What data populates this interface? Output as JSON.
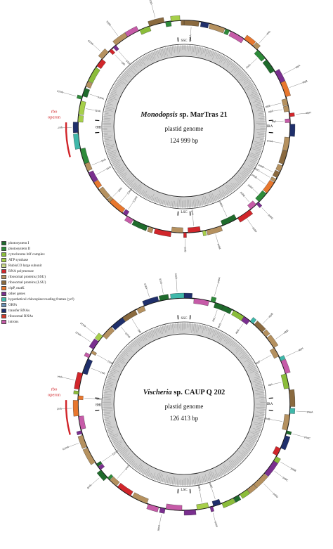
{
  "colors": {
    "photosystem_I": "#1f6b2c",
    "photosystem_II": "#2e8b3a",
    "cytochrome": "#8bbd3a",
    "atp": "#a6cf4a",
    "rubisco": "#c9d98a",
    "rna_pol": "#d1262b",
    "rps": "#b5915f",
    "rpl": "#8a6a3f",
    "clpp": "#e8772e",
    "other": "#7a2f8f",
    "ycf": "#3fb8aa",
    "orf": "#6b8fb3",
    "trna": "#1f2f6b",
    "rrna": "#d13a2b",
    "intron": "#c65ba8",
    "inner_ring": "#cfcfcf",
    "gc_band": "#9a9a9a",
    "operon": "#d1262b"
  },
  "legend": [
    {
      "label": "photosystem I",
      "color": "#1f6b2c"
    },
    {
      "label": "photosystem II",
      "color": "#2e8b3a"
    },
    {
      "label": "cytochrome b6f complex",
      "color": "#8bbd3a"
    },
    {
      "label": "ATP synthase",
      "color": "#a6cf4a"
    },
    {
      "label": "RubisCO large subunit",
      "color": "#c9d98a"
    },
    {
      "label": "RNA polymerase",
      "color": "#d1262b"
    },
    {
      "label": "ribosomal proteins (SSU)",
      "color": "#b5915f"
    },
    {
      "label": "ribosomal proteins (LSU)",
      "color": "#8a6a3f"
    },
    {
      "label": "clpP, matK",
      "color": "#e8772e"
    },
    {
      "label": "other genes",
      "color": "#7a2f8f"
    },
    {
      "label": "hypothetical chloroplast reading frames (ycf)",
      "color": "#3fb8aa"
    },
    {
      "label": "ORFs",
      "color": "#6b8fb3"
    },
    {
      "label": "transfer RNAs",
      "color": "#1f2f6b"
    },
    {
      "label": "ribosomal RNAs",
      "color": "#d13a2b"
    },
    {
      "label": "introns",
      "color": "#c65ba8"
    }
  ],
  "maps": [
    {
      "genus": "Monodopsis",
      "strain": "sp. MarTras 21",
      "genome_label": "plastid genome",
      "size_label": "124 999 bp",
      "region_top": "SSC",
      "region_bottom": "LSC",
      "region_left": "IRB",
      "region_right": "IRA",
      "operon_label_1": "rbo",
      "operon_label_2": "operon"
    },
    {
      "genus": "Vischeria",
      "strain": "sp. CAUP Q 202",
      "genome_label": "plastid genome",
      "size_label": "126 413 bp",
      "region_top": "SSC",
      "region_bottom": "LSC",
      "region_left": "IRB",
      "region_right": "IRA",
      "operon_label_1": "rbo",
      "operon_label_2": "operon"
    }
  ],
  "gene_labels": [
    "psbA",
    "rbcL",
    "rbcS",
    "atpA",
    "atpB",
    "atpE",
    "atpF",
    "atpH",
    "atpI",
    "psaA",
    "psaB",
    "psaC",
    "psbB",
    "psbC",
    "psbD",
    "psbE",
    "psbF",
    "psbH",
    "psbK",
    "rpoA",
    "rpoB",
    "rpoC1",
    "rpoC2",
    "rps2",
    "rps3",
    "rps4",
    "rps7",
    "rps11",
    "rps12",
    "rps14",
    "rps19",
    "rpl2",
    "rpl14",
    "rpl16",
    "rpl20",
    "rpl22",
    "rpl23",
    "rpl36",
    "clpP",
    "ycf3",
    "ycf4",
    "petA",
    "petB",
    "petD",
    "petG",
    "trnA",
    "trnI",
    "trnL",
    "trnM",
    "trnV",
    "rrn16",
    "rrn23",
    "rrn5",
    "ftsH",
    "secY",
    "dnaK",
    "tufA",
    "chlI",
    "ccsA",
    "sufB"
  ]
}
